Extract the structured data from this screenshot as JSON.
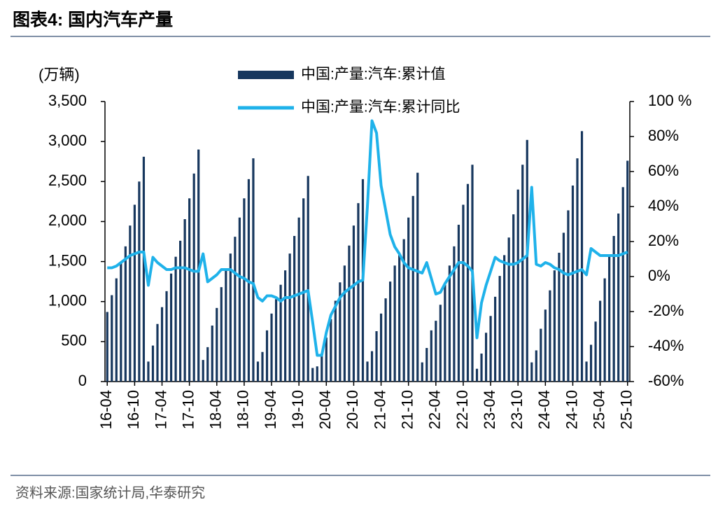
{
  "chart_data": {
    "type": "bar-line",
    "title": "图表4:  国内汽车产量",
    "y_label": "(万辆)",
    "source": "资料来源:国家统计局,华泰研究",
    "categories": [
      "16-04",
      null,
      null,
      null,
      null,
      null,
      "16-10",
      null,
      null,
      null,
      null,
      null,
      "17-04",
      null,
      null,
      null,
      null,
      null,
      "17-10",
      null,
      null,
      null,
      null,
      null,
      "18-04",
      null,
      null,
      null,
      null,
      null,
      "18-10",
      null,
      null,
      null,
      null,
      null,
      "19-04",
      null,
      null,
      null,
      null,
      null,
      "19-10",
      null,
      null,
      null,
      null,
      null,
      "20-04",
      null,
      null,
      null,
      null,
      null,
      "20-10",
      null,
      null,
      null,
      null,
      null,
      "21-04",
      null,
      null,
      null,
      null,
      null,
      "21-10",
      null,
      null,
      null,
      null,
      null,
      "22-04",
      null,
      null,
      null,
      null,
      null,
      "22-10",
      null,
      null,
      null,
      null,
      null,
      "23-04",
      null,
      null,
      null,
      null,
      null,
      "23-10",
      null,
      null,
      null,
      null,
      null,
      "24-04",
      null,
      null,
      null,
      null,
      null,
      "24-10",
      null,
      null,
      null,
      null,
      null,
      "25-04",
      null,
      null,
      null,
      null,
      null,
      "25-10"
    ],
    "series": [
      {
        "name": "中国:产量:汽车:累计值",
        "kind": "bar",
        "color": "#17375e",
        "axis": "y",
        "values": [
          870,
          1080,
          1290,
          1480,
          1690,
          1950,
          2210,
          2500,
          2810,
          250,
          450,
          720,
          930,
          1130,
          1350,
          1560,
          1760,
          2030,
          2290,
          2600,
          2900,
          270,
          430,
          700,
          920,
          1180,
          1400,
          1600,
          1810,
          2050,
          2290,
          2530,
          2790,
          250,
          370,
          640,
          850,
          1030,
          1210,
          1390,
          1600,
          1820,
          2050,
          2290,
          2570,
          170,
          190,
          340,
          550,
          780,
          1010,
          1240,
          1450,
          1700,
          1950,
          2230,
          2530,
          250,
          380,
          630,
          850,
          1040,
          1250,
          1450,
          1580,
          1780,
          2050,
          2320,
          2610,
          240,
          420,
          640,
          760,
          960,
          1210,
          1450,
          1690,
          1960,
          2210,
          2470,
          2710,
          160,
          350,
          610,
          820,
          1060,
          1320,
          1580,
          1800,
          2090,
          2400,
          2710,
          3020,
          240,
          390,
          660,
          900,
          1140,
          1390,
          1610,
          1860,
          2140,
          2450,
          2790,
          3130,
          250,
          460,
          750,
          1010,
          1290,
          1560,
          1820,
          2100,
          2430,
          2760
        ]
      },
      {
        "name": "中国:产量:汽车:累计同比",
        "kind": "line",
        "color": "#1fb2ea",
        "axis": "y2",
        "values": [
          5,
          5,
          6,
          8,
          10,
          12,
          13,
          14,
          14,
          -5,
          11,
          8,
          6,
          4,
          4,
          5,
          5,
          5,
          4,
          3,
          3,
          13,
          -3,
          -1,
          1,
          4,
          4,
          4,
          2,
          0,
          -1,
          -3,
          -4,
          -12,
          -14,
          -11,
          -11,
          -12,
          -14,
          -12,
          -12,
          -11,
          -10,
          -9,
          -8,
          -26,
          -45,
          -45,
          -32,
          -22,
          -17,
          -12,
          -9,
          -7,
          -5,
          -3,
          -2,
          40,
          89,
          82,
          52,
          38,
          24,
          17,
          13,
          8,
          5,
          4,
          3,
          2,
          8,
          -1,
          -10,
          -9,
          -4,
          0,
          4,
          8,
          8,
          6,
          3,
          -35,
          -15,
          -5,
          3,
          11,
          9,
          8,
          7,
          7,
          8,
          10,
          12,
          51,
          7,
          6,
          8,
          7,
          5,
          4,
          2,
          1,
          2,
          3,
          4,
          1,
          16,
          14,
          12,
          12,
          12,
          12,
          12,
          13,
          14
        ]
      }
    ],
    "ylim": [
      0,
      3500
    ],
    "yticks": [
      0,
      500,
      {
        "value": 1000,
        "label": "1,000"
      },
      {
        "value": 1500,
        "label": "1,500"
      },
      {
        "value": 2000,
        "label": "2,000"
      },
      {
        "value": 2500,
        "label": "2,500"
      },
      {
        "value": 3000,
        "label": "3,000"
      },
      {
        "value": 3500,
        "label": "3,500"
      }
    ],
    "y2lim": [
      -60,
      100
    ],
    "y2ticks": [
      {
        "value": -60,
        "label": "-60%"
      },
      {
        "value": -40,
        "label": "-40%"
      },
      {
        "value": -20,
        "label": "-20%"
      },
      {
        "value": 0,
        "label": "0%"
      },
      {
        "value": 20,
        "label": "20%"
      },
      {
        "value": 40,
        "label": "40%"
      },
      {
        "value": 60,
        "label": "60%"
      },
      {
        "value": 80,
        "label": "80%"
      },
      {
        "value": 100,
        "label": "100 %"
      }
    ],
    "grid": false
  }
}
